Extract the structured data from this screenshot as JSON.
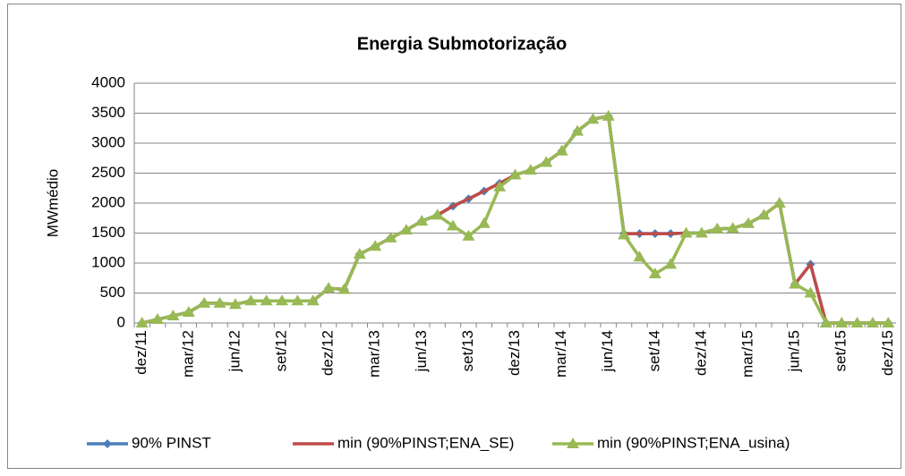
{
  "chart_data": {
    "type": "line",
    "title": "Energia Submotorização",
    "y_label": "MWmédio",
    "categories": [
      "dez/11",
      null,
      null,
      "mar/12",
      null,
      null,
      "jun/12",
      null,
      null,
      "set/12",
      null,
      null,
      "dez/12",
      null,
      null,
      "mar/13",
      null,
      null,
      "jun/13",
      null,
      null,
      "set/13",
      null,
      null,
      "dez/13",
      null,
      null,
      "mar/14",
      null,
      null,
      "jun/14",
      null,
      null,
      "set/14",
      null,
      null,
      "dez/14",
      null,
      null,
      "mar/15",
      null,
      null,
      "jun/15",
      null,
      null,
      "set/15",
      null,
      null,
      "dez/15"
    ],
    "series": [
      {
        "name": "90% PINST",
        "color": "#4a7ebb",
        "marker": "diamond",
        "values": [
          0,
          60,
          120,
          180,
          330,
          330,
          310,
          370,
          370,
          370,
          370,
          370,
          580,
          560,
          1150,
          1280,
          1420,
          1550,
          1700,
          1800,
          1950,
          2070,
          2200,
          2330,
          2470,
          2550,
          2680,
          2870,
          3200,
          3400,
          3450,
          1490,
          1490,
          1490,
          1490,
          1500,
          1500,
          1570,
          1580,
          1660,
          1800,
          2000,
          650,
          980,
          0,
          0,
          0,
          0,
          0
        ]
      },
      {
        "name": "min (90%PINST;ENA_SE)",
        "color": "#be4b48",
        "marker": "none",
        "values": [
          0,
          60,
          120,
          180,
          330,
          330,
          310,
          370,
          370,
          370,
          370,
          370,
          580,
          560,
          1150,
          1280,
          1420,
          1550,
          1700,
          1800,
          1950,
          2070,
          2200,
          2330,
          2470,
          2550,
          2680,
          2870,
          3200,
          3400,
          3450,
          1490,
          1490,
          1490,
          1490,
          1500,
          1500,
          1570,
          1580,
          1660,
          1800,
          2000,
          650,
          980,
          0,
          0,
          0,
          0,
          0
        ]
      },
      {
        "name": "min (90%PINST;ENA_usina)",
        "color": "#98b954",
        "marker": "triangle",
        "values": [
          0,
          60,
          120,
          180,
          330,
          330,
          310,
          370,
          370,
          370,
          370,
          370,
          580,
          560,
          1150,
          1280,
          1420,
          1550,
          1700,
          1800,
          1620,
          1450,
          1660,
          2270,
          2470,
          2550,
          2680,
          2870,
          3200,
          3400,
          3450,
          1470,
          1100,
          820,
          980,
          1500,
          1500,
          1570,
          1580,
          1660,
          1800,
          2000,
          650,
          500,
          0,
          0,
          0,
          0,
          0
        ]
      }
    ],
    "ylim": [
      0,
      4000
    ],
    "yticks": [
      0,
      500,
      1000,
      1500,
      2000,
      2500,
      3000,
      3500,
      4000
    ],
    "grid": true,
    "legend": "bottom"
  }
}
